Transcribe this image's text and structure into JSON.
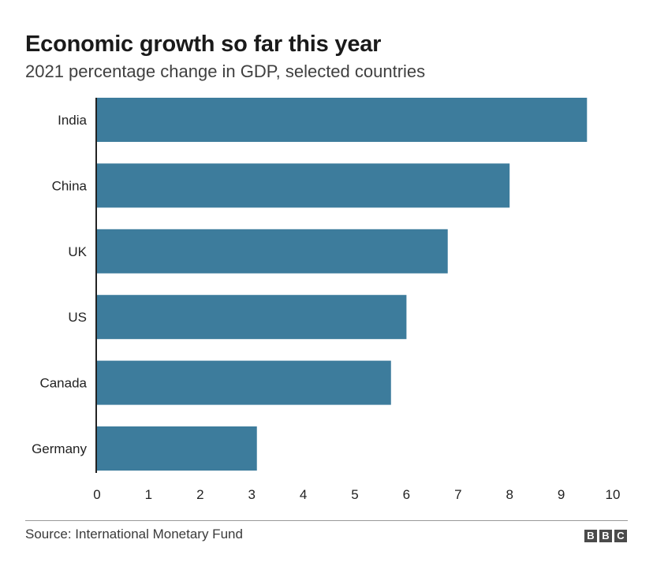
{
  "header": {
    "title": "Economic growth so far this year",
    "subtitle": "2021 percentage change in GDP, selected countries"
  },
  "chart_data": {
    "type": "bar",
    "orientation": "horizontal",
    "title": "Economic growth so far this year",
    "subtitle": "2021 percentage change in GDP, selected countries",
    "categories": [
      "India",
      "China",
      "UK",
      "US",
      "Canada",
      "Germany"
    ],
    "values": [
      9.5,
      8.0,
      6.8,
      6.0,
      5.7,
      3.1
    ],
    "xlabel": "",
    "ylabel": "",
    "xlim": [
      0,
      10
    ],
    "xticks": [
      "0",
      "1",
      "2",
      "3",
      "4",
      "5",
      "6",
      "7",
      "8",
      "9",
      "10"
    ],
    "grid": false,
    "bar_color": "#3d7c9c"
  },
  "footer": {
    "source": "Source: International Monetary Fund",
    "brand": [
      "B",
      "B",
      "C"
    ]
  }
}
